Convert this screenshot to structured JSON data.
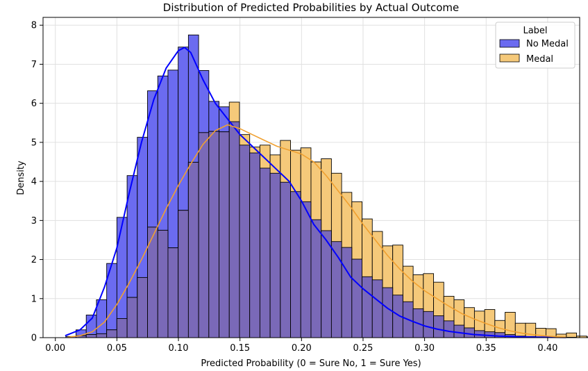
{
  "chart_data": {
    "type": "histogram",
    "title": "Distribution of Predicted Probabilities by Actual Outcome",
    "xlabel": "Predicted Probability (0 = Sure No, 1 = Sure Yes)",
    "ylabel": "Density",
    "xlim": [
      -0.01,
      0.426
    ],
    "ylim": [
      0,
      8.2
    ],
    "x_ticks": [
      0.0,
      0.05,
      0.1,
      0.15,
      0.2,
      0.25,
      0.3,
      0.35,
      0.4
    ],
    "x_tick_labels": [
      "0.00",
      "0.05",
      "0.10",
      "0.15",
      "0.20",
      "0.25",
      "0.30",
      "0.35",
      "0.40"
    ],
    "y_ticks": [
      0,
      1,
      2,
      3,
      4,
      5,
      6,
      7,
      8
    ],
    "y_tick_labels": [
      "0",
      "1",
      "2",
      "3",
      "4",
      "5",
      "6",
      "7",
      "8"
    ],
    "grid": true,
    "bin_start": 0.0085,
    "bin_width": 0.0083,
    "legend": {
      "title": "Label",
      "position": "top-right",
      "entries": [
        "No Medal",
        "Medal"
      ]
    },
    "series": [
      {
        "name": "No Medal",
        "fill": "#6b6bf0",
        "kde_color": "#0000ff",
        "values": [
          0.03,
          0.2,
          0.58,
          0.97,
          1.9,
          3.08,
          4.15,
          5.13,
          6.32,
          6.7,
          6.85,
          7.44,
          7.75,
          6.84,
          6.05,
          5.91,
          5.53,
          4.93,
          4.73,
          4.34,
          4.21,
          3.98,
          3.74,
          3.48,
          3.02,
          2.74,
          2.46,
          2.31,
          2.01,
          1.56,
          1.48,
          1.28,
          1.09,
          0.92,
          0.74,
          0.67,
          0.56,
          0.43,
          0.32,
          0.25,
          0.18,
          0.15,
          0.13,
          0.08,
          0.04,
          0.03,
          0.02,
          0.02,
          0.01,
          0.01
        ],
        "kde_x": [
          0.008,
          0.02,
          0.03,
          0.04,
          0.05,
          0.06,
          0.07,
          0.08,
          0.09,
          0.1,
          0.105,
          0.11,
          0.12,
          0.13,
          0.14,
          0.15,
          0.16,
          0.17,
          0.18,
          0.19,
          0.2,
          0.21,
          0.22,
          0.23,
          0.24,
          0.25,
          0.26,
          0.27,
          0.28,
          0.29,
          0.3,
          0.31,
          0.32,
          0.33,
          0.34,
          0.35,
          0.36,
          0.37,
          0.38,
          0.39,
          0.4,
          0.415
        ],
        "kde_y": [
          0.05,
          0.2,
          0.5,
          1.3,
          2.3,
          3.7,
          5.0,
          6.1,
          6.9,
          7.35,
          7.43,
          7.3,
          6.6,
          6.0,
          5.6,
          5.2,
          4.9,
          4.6,
          4.3,
          4.0,
          3.5,
          2.9,
          2.5,
          2.05,
          1.55,
          1.25,
          1.0,
          0.75,
          0.55,
          0.42,
          0.3,
          0.22,
          0.16,
          0.12,
          0.08,
          0.06,
          0.04,
          0.03,
          0.02,
          0.015,
          0.01,
          0.005
        ]
      },
      {
        "name": "Medal",
        "fill": "#f5c97a",
        "kde_color": "#f0a030",
        "values": [
          0.0,
          0.05,
          0.08,
          0.1,
          0.2,
          0.49,
          1.03,
          1.54,
          2.83,
          2.75,
          2.3,
          3.26,
          4.49,
          5.25,
          5.28,
          5.27,
          6.03,
          5.2,
          4.88,
          4.93,
          4.68,
          5.05,
          4.8,
          4.86,
          4.5,
          4.58,
          4.21,
          3.72,
          3.48,
          3.04,
          2.72,
          2.35,
          2.37,
          1.83,
          1.61,
          1.64,
          1.42,
          1.06,
          0.97,
          0.77,
          0.68,
          0.72,
          0.44,
          0.65,
          0.37,
          0.37,
          0.24,
          0.23,
          0.09,
          0.12,
          0.04,
          0.02
        ],
        "kde_x": [
          0.01,
          0.02,
          0.03,
          0.04,
          0.05,
          0.06,
          0.07,
          0.08,
          0.09,
          0.1,
          0.11,
          0.12,
          0.13,
          0.14,
          0.15,
          0.16,
          0.17,
          0.18,
          0.19,
          0.2,
          0.21,
          0.22,
          0.23,
          0.24,
          0.25,
          0.26,
          0.27,
          0.28,
          0.29,
          0.3,
          0.31,
          0.32,
          0.33,
          0.34,
          0.35,
          0.36,
          0.37,
          0.38,
          0.39,
          0.4,
          0.41,
          0.415
        ],
        "kde_y": [
          0.01,
          0.05,
          0.15,
          0.4,
          0.85,
          1.4,
          2.0,
          2.65,
          3.3,
          3.9,
          4.45,
          4.95,
          5.3,
          5.45,
          5.35,
          5.2,
          5.05,
          4.9,
          4.8,
          4.7,
          4.5,
          4.15,
          3.75,
          3.35,
          2.9,
          2.5,
          2.1,
          1.75,
          1.45,
          1.2,
          1.0,
          0.8,
          0.62,
          0.48,
          0.36,
          0.25,
          0.17,
          0.11,
          0.07,
          0.04,
          0.02,
          0.01
        ]
      }
    ]
  }
}
